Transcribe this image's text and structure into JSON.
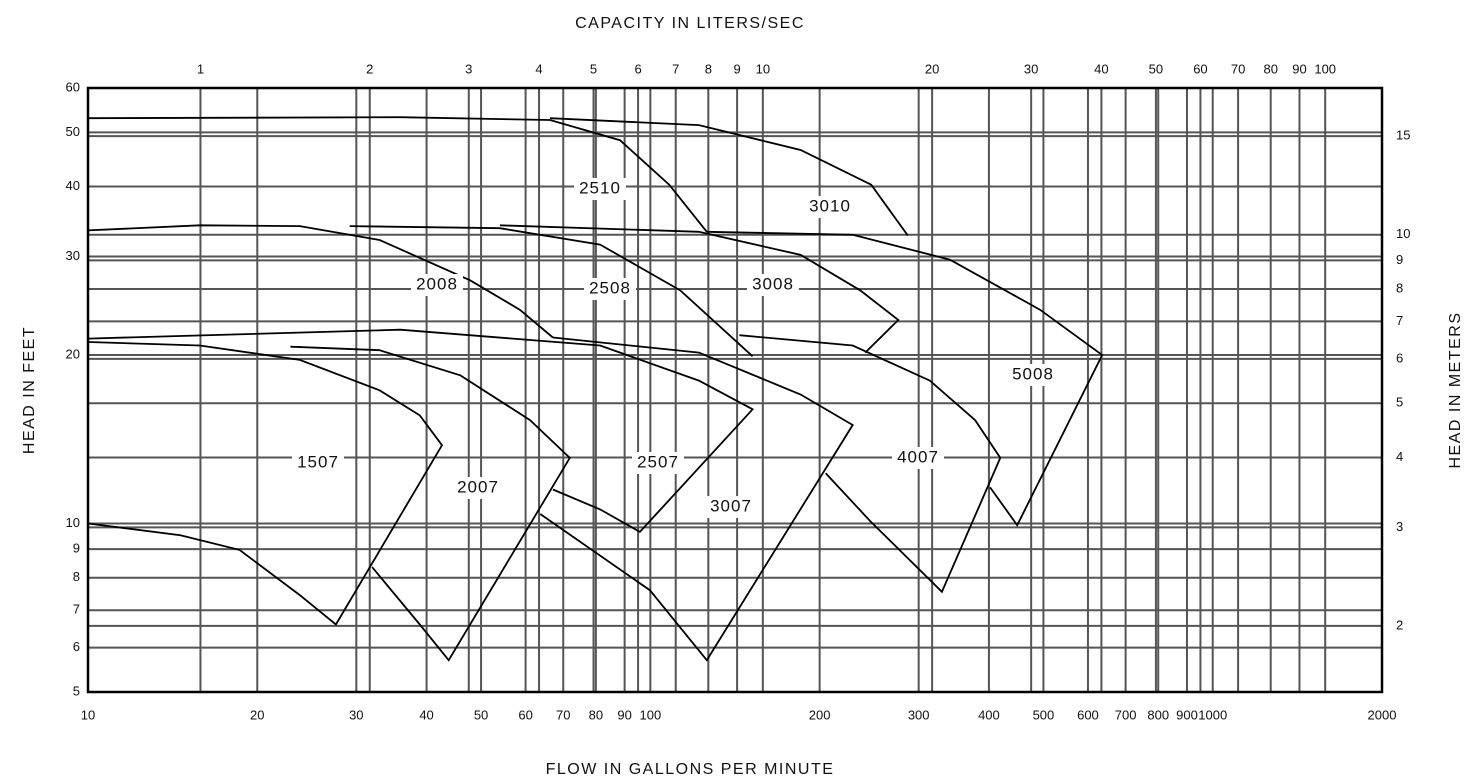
{
  "chart_data": {
    "type": "line",
    "xlabel": "FLOW IN GALLONS PER MINUTE",
    "ylabel": "HEAD IN FEET",
    "x2label": "CAPACITY IN LITERS/SEC",
    "y2label": "HEAD IN METERS",
    "xscale": "log",
    "yscale": "log",
    "xlim": [
      10,
      2000
    ],
    "ylim": [
      5,
      60
    ],
    "xticks": [
      10,
      20,
      30,
      40,
      50,
      60,
      70,
      80,
      90,
      100,
      200,
      300,
      400,
      500,
      600,
      700,
      800,
      900,
      1000,
      2000
    ],
    "yticks": [
      5,
      6,
      7,
      8,
      9,
      10,
      20,
      30,
      40,
      50,
      60
    ],
    "x2lim": [
      0.631,
      126.18
    ],
    "x2ticks": [
      1,
      2,
      3,
      4,
      5,
      6,
      7,
      8,
      9,
      10,
      20,
      30,
      40,
      50,
      60,
      70,
      80,
      90,
      100
    ],
    "y2lim": [
      1.524,
      18.288
    ],
    "y2ticks": [
      2,
      3,
      4,
      5,
      6,
      7,
      8,
      9,
      10,
      15
    ],
    "grid": true,
    "series": [
      {
        "name": "1507",
        "color": "#000000",
        "x": [
          10,
          15.8,
          23.8,
          33,
          38.9,
          42.6,
          27.6,
          23.8,
          18.6,
          14.6,
          10
        ],
        "values": [
          21.1,
          20.8,
          19.6,
          17.3,
          15.6,
          13.8,
          6.6,
          7.45,
          8.97,
          9.53,
          10
        ]
      },
      {
        "name": "2007",
        "color": "#000000",
        "x": [
          22.9,
          33,
          45.9,
          61.1,
          71.9,
          43.8,
          38.9,
          32
        ],
        "values": [
          20.7,
          20.4,
          18.4,
          15.3,
          13.1,
          5.7,
          6.6,
          8.36
        ]
      },
      {
        "name": "2008",
        "color": "#000000",
        "x": [
          10,
          15.8,
          23.8,
          33,
          47.8,
          58.6,
          67.1
        ],
        "values": [
          33.4,
          34.1,
          34,
          32.1,
          27.2,
          24.1,
          21.5
        ]
      },
      {
        "name": "2507",
        "color": "#000000",
        "x": [
          10,
          35.9,
          81.4,
          122,
          152,
          95.8,
          81.4,
          67.1
        ],
        "values": [
          21.4,
          22.2,
          20.8,
          18,
          16,
          9.66,
          10.6,
          11.5
        ]
      },
      {
        "name": "3007",
        "color": "#000000",
        "x": [
          67.1,
          122,
          185,
          229,
          126,
          99.8,
          63.7
        ],
        "values": [
          21.5,
          20.2,
          17,
          15,
          5.7,
          7.6,
          10.4
        ]
      },
      {
        "name": "2508",
        "color": "#000000",
        "x": [
          29.2,
          54,
          81.4,
          113,
          152
        ],
        "values": [
          34,
          33.7,
          31.5,
          26.1,
          19.9
        ]
      },
      {
        "name": "3008",
        "color": "#000000",
        "x": [
          54,
          122,
          185,
          236,
          276,
          241
        ],
        "values": [
          34.1,
          33.2,
          30.2,
          26.1,
          23.1,
          20.2
        ]
      },
      {
        "name": "2510",
        "color": "#000000",
        "x": [
          10,
          35.9,
          66.3,
          88.3,
          108,
          126
        ],
        "values": [
          53,
          53.2,
          52.6,
          48.4,
          40.3,
          33.2
        ]
      },
      {
        "name": "3010",
        "color": "#000000",
        "x": [
          66.3,
          122,
          185,
          247,
          287
        ],
        "values": [
          53,
          51.5,
          46.5,
          40.3,
          32.7
        ]
      },
      {
        "name": "5008",
        "color": "#000000",
        "x": [
          126,
          229,
          341,
          493,
          636,
          449,
          402
        ],
        "values": [
          33.2,
          32.8,
          29.6,
          24.1,
          20,
          9.93,
          11.6
        ]
      },
      {
        "name": "4007",
        "color": "#000000",
        "x": [
          144,
          229,
          314,
          378,
          419,
          330,
          246,
          205
        ],
        "values": [
          21.7,
          20.8,
          18,
          15.3,
          13.1,
          7.55,
          10.1,
          12.3
        ]
      }
    ]
  }
}
